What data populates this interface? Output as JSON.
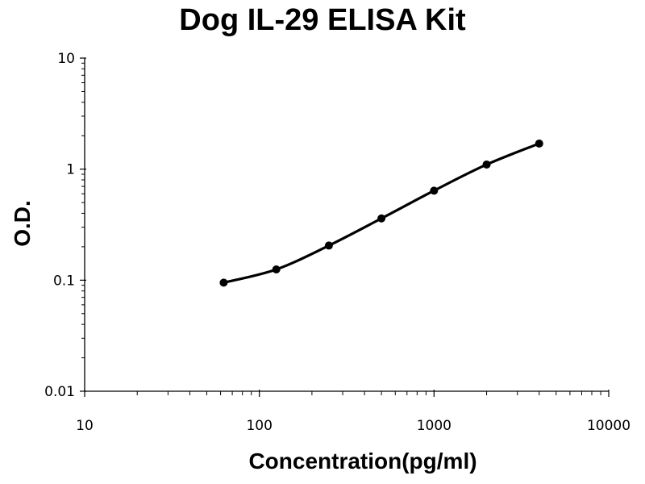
{
  "chart_data": {
    "type": "line",
    "title": "Dog IL-29 ELISA Kit",
    "xlabel": "Concentration(pg/ml)",
    "ylabel": "O.D.",
    "x_scale": "log",
    "y_scale": "log",
    "xlim": [
      10,
      10000
    ],
    "ylim": [
      0.01,
      10
    ],
    "x_ticks": [
      "10",
      "100",
      "1000",
      "10000"
    ],
    "y_ticks": [
      "0.01",
      "0.1",
      "1",
      "10"
    ],
    "grid": false,
    "legend": "none",
    "series": [
      {
        "x": [
          62.5,
          125,
          250,
          500,
          1000,
          2000,
          4000
        ],
        "y": [
          0.095,
          0.125,
          0.205,
          0.36,
          0.64,
          1.1,
          1.7
        ]
      }
    ],
    "colors": {
      "line": "#000000",
      "marker": "#000000",
      "axis": "#000000"
    }
  }
}
